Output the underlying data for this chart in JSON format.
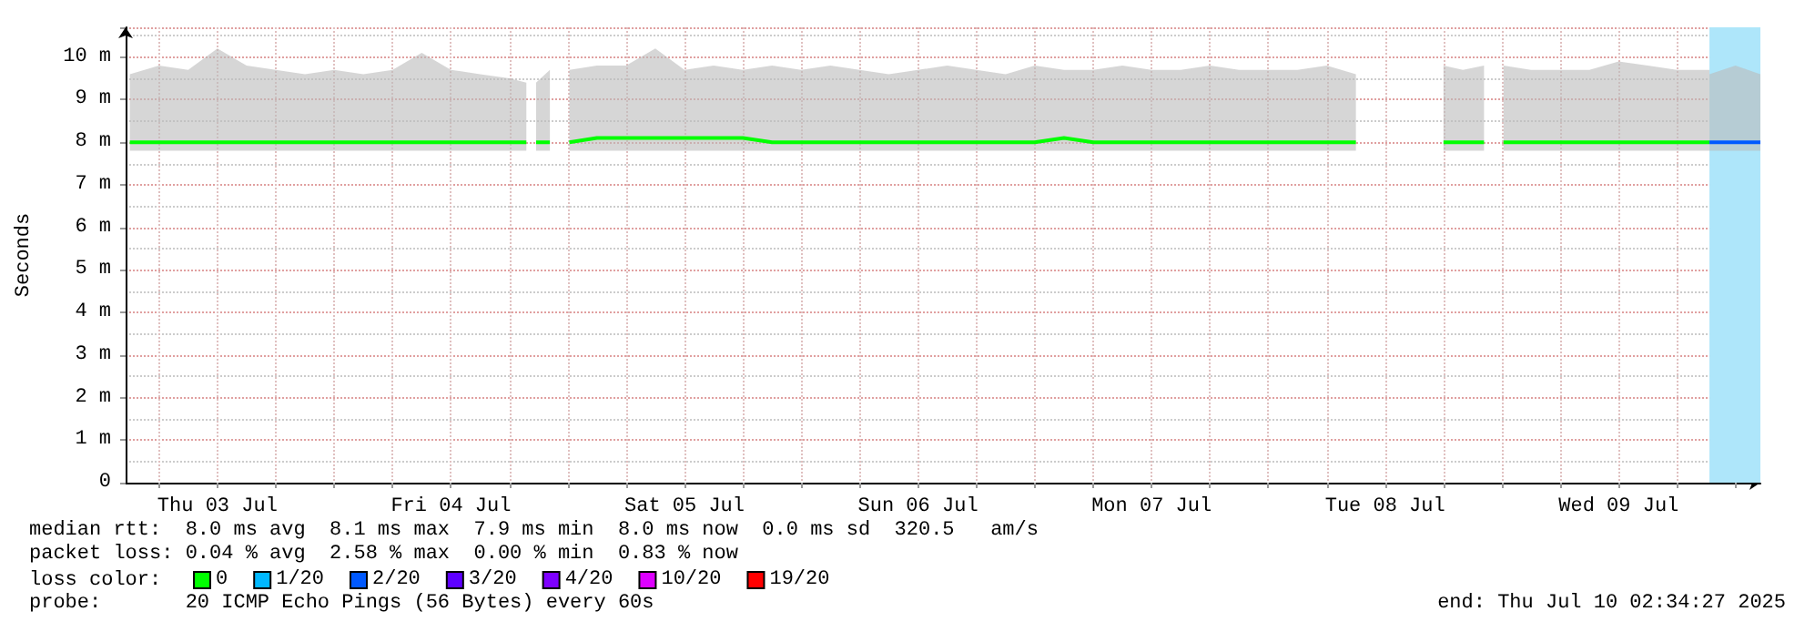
{
  "chart_data": {
    "type": "line",
    "ylabel": "Seconds",
    "legend_title": "loss color:",
    "legend": "bottom left",
    "grid": true,
    "marker": "none",
    "line_style": "solid",
    "xlim": [
      "2025-07-03T02:34",
      "2025-07-10T02:34"
    ],
    "xticks": [
      {
        "value": "2025-07-03T06:00",
        "label": null
      },
      {
        "value": "2025-07-03T12:00",
        "label": "Thu 03 Jul"
      },
      {
        "value": "2025-07-03T18:00",
        "label": null
      },
      {
        "value": "2025-07-04T00:00",
        "label": null
      },
      {
        "value": "2025-07-04T06:00",
        "label": null
      },
      {
        "value": "2025-07-04T12:00",
        "label": "Fri 04 Jul"
      },
      {
        "value": "2025-07-04T18:00",
        "label": null
      },
      {
        "value": "2025-07-05T00:00",
        "label": null
      },
      {
        "value": "2025-07-05T06:00",
        "label": null
      },
      {
        "value": "2025-07-05T12:00",
        "label": "Sat 05 Jul"
      },
      {
        "value": "2025-07-05T18:00",
        "label": null
      },
      {
        "value": "2025-07-06T00:00",
        "label": null
      },
      {
        "value": "2025-07-06T06:00",
        "label": null
      },
      {
        "value": "2025-07-06T12:00",
        "label": "Sun 06 Jul"
      },
      {
        "value": "2025-07-06T18:00",
        "label": null
      },
      {
        "value": "2025-07-07T00:00",
        "label": null
      },
      {
        "value": "2025-07-07T06:00",
        "label": null
      },
      {
        "value": "2025-07-07T12:00",
        "label": "Mon 07 Jul"
      },
      {
        "value": "2025-07-07T18:00",
        "label": null
      },
      {
        "value": "2025-07-08T00:00",
        "label": null
      },
      {
        "value": "2025-07-08T06:00",
        "label": null
      },
      {
        "value": "2025-07-08T12:00",
        "label": "Tue 08 Jul"
      },
      {
        "value": "2025-07-08T18:00",
        "label": null
      },
      {
        "value": "2025-07-09T00:00",
        "label": null
      },
      {
        "value": "2025-07-09T06:00",
        "label": null
      },
      {
        "value": "2025-07-09T12:00",
        "label": "Wed 09 Jul"
      },
      {
        "value": "2025-07-09T18:00",
        "label": null
      },
      {
        "value": "2025-07-10T00:00",
        "label": null
      }
    ],
    "ylim": [
      0,
      10.7
    ],
    "yticks": [
      0,
      {
        "value": 1,
        "label": "1 m"
      },
      {
        "value": 2,
        "label": "2 m"
      },
      {
        "value": 3,
        "label": "3 m"
      },
      {
        "value": 4,
        "label": "4 m"
      },
      {
        "value": 5,
        "label": "5 m"
      },
      {
        "value": 6,
        "label": "6 m"
      },
      {
        "value": 7,
        "label": "7 m"
      },
      {
        "value": 8,
        "label": "8 m"
      },
      {
        "value": 9,
        "label": "9 m"
      },
      {
        "value": 10,
        "label": "10 m"
      }
    ],
    "bands": [
      {
        "axis": "x",
        "from": "2025-07-09T21:20",
        "to": "2025-07-10T02:34",
        "color": "#aee6fa"
      }
    ],
    "series": [
      {
        "name": "0",
        "color": "#00ff00",
        "x": [
          "2025-07-03T03:00",
          "2025-07-03T06:00",
          "2025-07-03T09:00",
          "2025-07-03T12:00",
          "2025-07-03T15:00",
          "2025-07-03T18:00",
          "2025-07-03T21:00",
          "2025-07-04T00:00",
          "2025-07-04T03:00",
          "2025-07-04T06:00",
          "2025-07-04T09:00",
          "2025-07-04T12:00",
          "2025-07-04T15:00",
          "2025-07-04T18:00",
          "2025-07-04T19:45",
          "2025-07-04T20:10",
          "2025-07-04T20:45",
          "2025-07-04T22:10",
          "2025-07-04T23:00",
          "2025-07-05T00:10",
          "2025-07-05T03:00",
          "2025-07-05T06:00",
          "2025-07-05T09:00",
          "2025-07-05T12:00",
          "2025-07-05T15:00",
          "2025-07-05T18:00",
          "2025-07-05T21:00",
          "2025-07-06T00:00",
          "2025-07-06T03:00",
          "2025-07-06T06:00",
          "2025-07-06T09:00",
          "2025-07-06T12:00",
          "2025-07-06T15:00",
          "2025-07-06T18:00",
          "2025-07-06T21:00",
          "2025-07-07T00:00",
          "2025-07-07T03:00",
          "2025-07-07T06:00",
          "2025-07-07T09:00",
          "2025-07-07T12:00",
          "2025-07-07T15:00",
          "2025-07-07T18:00",
          "2025-07-07T21:00",
          "2025-07-08T00:00",
          "2025-07-08T03:00",
          "2025-07-08T06:00",
          "2025-07-08T09:00",
          "2025-07-08T10:00",
          "2025-07-08T14:00",
          "2025-07-08T18:00",
          "2025-07-08T20:00",
          "2025-07-08T22:10",
          "2025-07-08T23:00",
          "2025-07-09T00:10",
          "2025-07-09T03:00",
          "2025-07-09T06:00",
          "2025-07-09T09:00",
          "2025-07-09T12:00",
          "2025-07-09T15:00",
          "2025-07-09T18:00",
          "2025-07-09T21:20"
        ],
        "values": [
          8.0,
          8.0,
          8.0,
          8.0,
          8.0,
          8.0,
          8.0,
          8.0,
          8.0,
          8.0,
          8.0,
          8.0,
          8.0,
          8.0,
          8.0,
          null,
          8.0,
          8.0,
          null,
          8.0,
          8.1,
          8.1,
          8.1,
          8.1,
          8.1,
          8.1,
          8.0,
          8.0,
          8.0,
          8.0,
          8.0,
          8.0,
          8.0,
          8.0,
          8.0,
          8.0,
          8.1,
          8.0,
          8.0,
          8.0,
          8.0,
          8.0,
          8.0,
          8.0,
          8.0,
          8.0,
          8.0,
          null,
          null,
          8.0,
          8.0,
          8.0,
          null,
          8.0,
          8.0,
          8.0,
          8.0,
          8.0,
          8.0,
          8.0,
          8.0
        ],
        "lower": [
          7.8,
          7.8,
          7.8,
          7.8,
          7.8,
          7.8,
          7.8,
          7.8,
          7.8,
          7.8,
          7.8,
          7.8,
          7.8,
          7.8,
          7.8,
          null,
          7.8,
          7.8,
          null,
          7.8,
          7.8,
          7.8,
          7.8,
          7.8,
          7.8,
          7.8,
          7.8,
          7.8,
          7.8,
          7.8,
          7.8,
          7.8,
          7.8,
          7.8,
          7.8,
          7.8,
          7.8,
          7.8,
          7.8,
          7.8,
          7.8,
          7.8,
          7.8,
          7.8,
          7.8,
          7.8,
          7.8,
          null,
          null,
          7.8,
          7.8,
          7.8,
          null,
          7.8,
          7.8,
          7.8,
          7.8,
          7.8,
          7.8,
          7.8,
          7.8
        ],
        "upper": [
          9.6,
          9.8,
          9.7,
          10.2,
          9.8,
          9.7,
          9.6,
          9.7,
          9.6,
          9.7,
          10.1,
          9.7,
          9.6,
          9.5,
          9.4,
          null,
          9.4,
          9.7,
          null,
          9.7,
          9.8,
          9.8,
          10.2,
          9.7,
          9.8,
          9.7,
          9.8,
          9.7,
          9.8,
          9.7,
          9.6,
          9.7,
          9.8,
          9.7,
          9.6,
          9.8,
          9.7,
          9.7,
          9.8,
          9.7,
          9.7,
          9.8,
          9.7,
          9.7,
          9.7,
          9.8,
          9.6,
          null,
          null,
          9.8,
          9.7,
          9.8,
          null,
          9.8,
          9.7,
          9.7,
          9.7,
          9.9,
          9.8,
          9.7,
          9.7
        ]
      },
      {
        "name": "1/20",
        "color": "#00b8ff"
      },
      {
        "name": "2/20",
        "color": "#0059ff",
        "x": [
          "2025-07-09T21:20",
          "2025-07-10T00:00",
          "2025-07-10T02:34"
        ],
        "values": [
          8.0,
          8.0,
          8.0
        ],
        "lower": [
          7.8,
          7.8,
          7.8
        ],
        "upper": [
          9.6,
          9.8,
          9.6
        ]
      },
      {
        "name": "3/20",
        "color": "#5e00ff"
      },
      {
        "name": "4/20",
        "color": "#7e00ff"
      },
      {
        "name": "10/20",
        "color": "#dd00ff"
      },
      {
        "name": "19/20",
        "color": "#ff0000"
      }
    ],
    "annotations": [
      "median rtt:  8.0 ms avg  8.1 ms max  7.9 ms min  8.0 ms now  0.0 ms sd  320.5   am/s",
      "packet loss: 0.04 % avg  2.58 % max  0.00 % min  0.83 % now",
      "probe:       20 ICMP Echo Pings (56 Bytes) every 60s",
      "end: Thu Jul 10 02:34:27 2025"
    ]
  }
}
